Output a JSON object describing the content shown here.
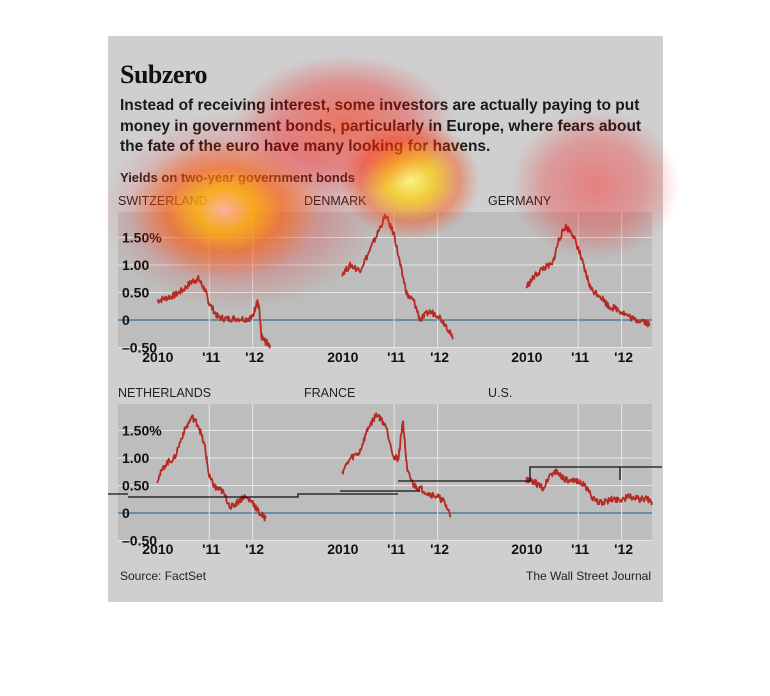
{
  "header": {
    "title": "Subzero",
    "subtitle": "Instead of receiving interest, some investors are actually paying to put money in government bonds, particularly in Europe, where fears about the fate of the euro have many looking for havens.",
    "chart_subtitle": "Yields on two-year government bonds"
  },
  "footer": {
    "source": "Source: FactSet",
    "credit": "The Wall Street Journal"
  },
  "colors": {
    "background": "#cfcfcf",
    "plot_bg": "#bdbdbd",
    "line": "#b52a24",
    "zero_line": "#3a6f8f",
    "grid": "#e6e6e6"
  },
  "chart_data": [
    {
      "type": "line",
      "title": "SWITZERLAND",
      "y_tick_labels": [
        "1.50%",
        "1.00",
        "0.50",
        "0",
        "–0.50"
      ],
      "x_tick_labels": [
        "2010",
        "'11",
        "'12"
      ],
      "ylim": [
        -0.6,
        2.0
      ],
      "xlim": [
        2009.75,
        2012.7
      ],
      "x": [
        2009.8,
        2010.0,
        2010.2,
        2010.4,
        2010.6,
        2010.75,
        2010.9,
        2011.0,
        2011.2,
        2011.4,
        2011.6,
        2011.85,
        2012.0,
        2012.1,
        2012.15,
        2012.2,
        2012.3,
        2012.4
      ],
      "values": [
        0.35,
        0.4,
        0.45,
        0.55,
        0.7,
        0.75,
        0.55,
        0.3,
        0.05,
        0.02,
        0.03,
        0.02,
        0.05,
        0.35,
        0.2,
        -0.3,
        -0.4,
        -0.45
      ]
    },
    {
      "type": "line",
      "title": "DENMARK",
      "y_tick_labels": [
        "1.50%",
        "1.00",
        "0.50",
        "0",
        "–0.50"
      ],
      "x_tick_labels": [
        "2010",
        "'11",
        "'12"
      ],
      "ylim": [
        -0.6,
        2.0
      ],
      "xlim": [
        2009.75,
        2012.7
      ],
      "x": [
        2009.8,
        2010.0,
        2010.2,
        2010.4,
        2010.6,
        2010.8,
        2011.0,
        2011.15,
        2011.3,
        2011.45,
        2011.6,
        2011.8,
        2012.0,
        2012.2,
        2012.35
      ],
      "values": [
        0.85,
        1.0,
        0.9,
        1.2,
        1.55,
        1.9,
        1.55,
        0.95,
        0.45,
        0.35,
        0.0,
        0.15,
        0.1,
        -0.1,
        -0.35
      ]
    },
    {
      "type": "line",
      "title": "GERMANY",
      "y_tick_labels": [
        "1.50%",
        "1.00",
        "0.50",
        "0",
        "–0.50"
      ],
      "x_tick_labels": [
        "2010",
        "'11",
        "'12"
      ],
      "ylim": [
        -0.6,
        2.0
      ],
      "xlim": [
        2009.75,
        2012.7
      ],
      "x": [
        2009.8,
        2010.0,
        2010.2,
        2010.4,
        2010.55,
        2010.7,
        2010.85,
        2011.0,
        2011.15,
        2011.3,
        2011.5,
        2011.7,
        2011.9,
        2012.1,
        2012.3,
        2012.5,
        2012.65
      ],
      "values": [
        0.6,
        0.8,
        0.95,
        1.0,
        1.45,
        1.7,
        1.6,
        1.3,
        0.9,
        0.55,
        0.45,
        0.25,
        0.2,
        0.1,
        0.0,
        0.0,
        -0.1
      ]
    },
    {
      "type": "line",
      "title": "NETHERLANDS",
      "y_tick_labels": [
        "1.50%",
        "1.00",
        "0.50",
        "0",
        "–0.50"
      ],
      "x_tick_labels": [
        "2010",
        "'11",
        "'12"
      ],
      "ylim": [
        -0.6,
        2.0
      ],
      "xlim": [
        2009.75,
        2012.7
      ],
      "x": [
        2009.8,
        2010.0,
        2010.2,
        2010.4,
        2010.6,
        2010.75,
        2010.9,
        2011.0,
        2011.15,
        2011.3,
        2011.5,
        2011.65,
        2011.8,
        2012.0,
        2012.15,
        2012.3
      ],
      "values": [
        0.6,
        0.9,
        1.0,
        1.45,
        1.75,
        1.6,
        1.2,
        0.65,
        0.45,
        0.4,
        0.1,
        0.2,
        0.3,
        0.2,
        0.0,
        -0.1
      ]
    },
    {
      "type": "line",
      "title": "FRANCE",
      "y_tick_labels": [
        "1.50%",
        "1.00",
        "0.50",
        "0",
        "–0.50"
      ],
      "x_tick_labels": [
        "2010",
        "'11",
        "'12"
      ],
      "ylim": [
        -0.6,
        2.0
      ],
      "xlim": [
        2009.75,
        2012.7
      ],
      "x": [
        2009.8,
        2010.0,
        2010.2,
        2010.4,
        2010.6,
        2010.8,
        2011.0,
        2011.1,
        2011.2,
        2011.3,
        2011.45,
        2011.6,
        2011.8,
        2012.0,
        2012.15,
        2012.3
      ],
      "values": [
        0.75,
        1.0,
        1.1,
        1.55,
        1.8,
        1.6,
        1.0,
        1.0,
        1.7,
        0.75,
        0.5,
        0.45,
        0.35,
        0.3,
        0.2,
        -0.05
      ]
    },
    {
      "type": "line",
      "title": "U.S.",
      "y_tick_labels": [
        "1.50%",
        "1.00",
        "0.50",
        "0",
        "–0.50"
      ],
      "x_tick_labels": [
        "2010",
        "'11",
        "'12"
      ],
      "ylim": [
        -0.6,
        2.0
      ],
      "xlim": [
        2009.75,
        2012.7
      ],
      "x": [
        2009.8,
        2010.0,
        2010.2,
        2010.35,
        2010.5,
        2010.65,
        2010.8,
        2011.0,
        2011.2,
        2011.4,
        2011.6,
        2011.8,
        2012.0,
        2012.2,
        2012.4,
        2012.6,
        2012.7
      ],
      "values": [
        0.6,
        0.55,
        0.45,
        0.7,
        0.75,
        0.65,
        0.55,
        0.6,
        0.45,
        0.2,
        0.2,
        0.25,
        0.25,
        0.3,
        0.25,
        0.25,
        0.2
      ]
    }
  ]
}
